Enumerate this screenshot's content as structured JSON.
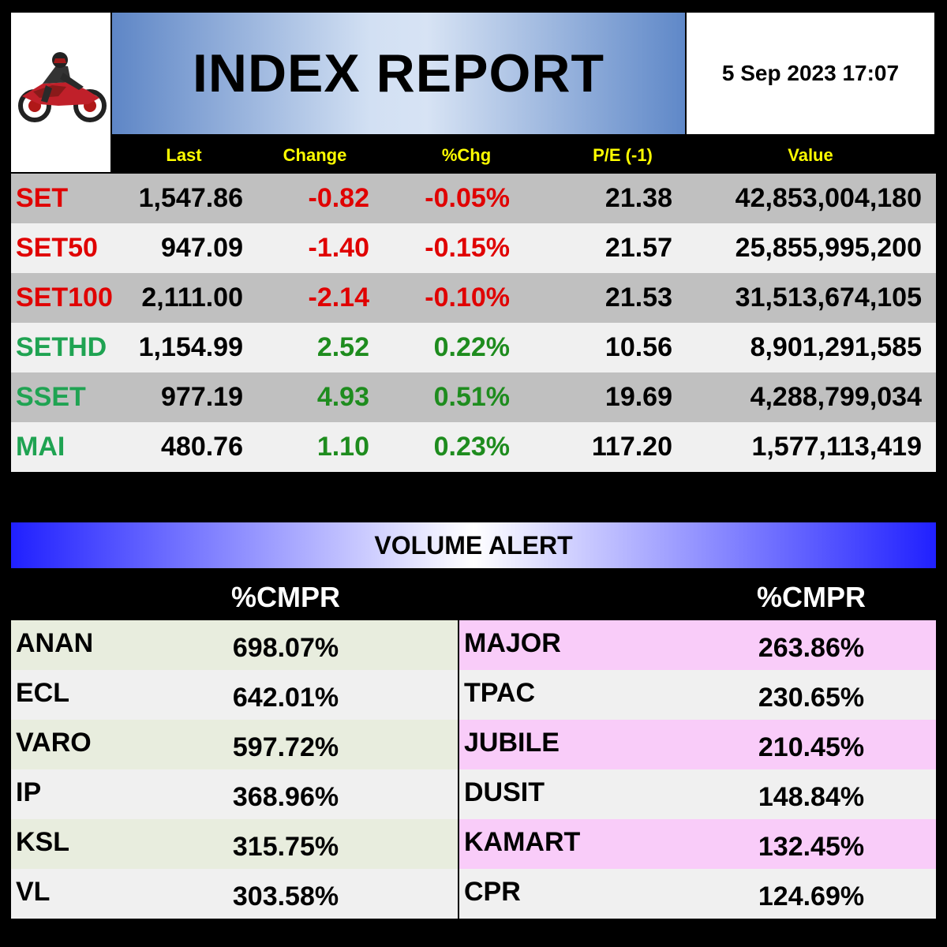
{
  "title": "INDEX REPORT",
  "datetime": "5 Sep 2023 17:07",
  "logo": {
    "icon": "motorcycle-rider-icon"
  },
  "index_table": {
    "headers": {
      "last": "Last",
      "change": "Change",
      "pct_chg": "%Chg",
      "pe": "P/E (-1)",
      "value": "Value"
    },
    "rows": [
      {
        "name": "SET",
        "last": "1,547.86",
        "change": "-0.82",
        "pct": "-0.05%",
        "pe": "21.38",
        "value": "42,853,004,180",
        "dir": "down"
      },
      {
        "name": "SET50",
        "last": "947.09",
        "change": "-1.40",
        "pct": "-0.15%",
        "pe": "21.57",
        "value": "25,855,995,200",
        "dir": "down"
      },
      {
        "name": "SET100",
        "last": "2,111.00",
        "change": "-2.14",
        "pct": "-0.10%",
        "pe": "21.53",
        "value": "31,513,674,105",
        "dir": "down"
      },
      {
        "name": "SETHD",
        "last": "1,154.99",
        "change": "2.52",
        "pct": "0.22%",
        "pe": "10.56",
        "value": "8,901,291,585",
        "dir": "up"
      },
      {
        "name": "SSET",
        "last": "977.19",
        "change": "4.93",
        "pct": "0.51%",
        "pe": "19.69",
        "value": "4,288,799,034",
        "dir": "up"
      },
      {
        "name": "MAI",
        "last": "480.76",
        "change": "1.10",
        "pct": "0.23%",
        "pe": "117.20",
        "value": "1,577,113,419",
        "dir": "up"
      }
    ]
  },
  "volume_alert": {
    "title": "VOLUME ALERT",
    "left_header": "%CMPR",
    "right_header": "%CMPR",
    "left": [
      {
        "symbol": "ANAN",
        "pct": "698.07%"
      },
      {
        "symbol": "ECL",
        "pct": "642.01%"
      },
      {
        "symbol": "VARO",
        "pct": "597.72%"
      },
      {
        "symbol": "IP",
        "pct": "368.96%"
      },
      {
        "symbol": "KSL",
        "pct": "315.75%"
      },
      {
        "symbol": "VL",
        "pct": "303.58%"
      }
    ],
    "right": [
      {
        "symbol": "MAJOR",
        "pct": "263.86%"
      },
      {
        "symbol": "TPAC",
        "pct": "230.65%"
      },
      {
        "symbol": "JUBILE",
        "pct": "210.45%"
      },
      {
        "symbol": "DUSIT",
        "pct": "148.84%"
      },
      {
        "symbol": "KAMART",
        "pct": "132.45%"
      },
      {
        "symbol": "CPR",
        "pct": "124.69%"
      }
    ]
  },
  "colors": {
    "negative": "#e00000",
    "positive": "#1e8c1e",
    "header_text": "#ffff00",
    "row_gray": "#c0c0c0",
    "row_light": "#f0f0f0",
    "left_alt": "#e8edde",
    "right_alt": "#f9ccf9"
  }
}
